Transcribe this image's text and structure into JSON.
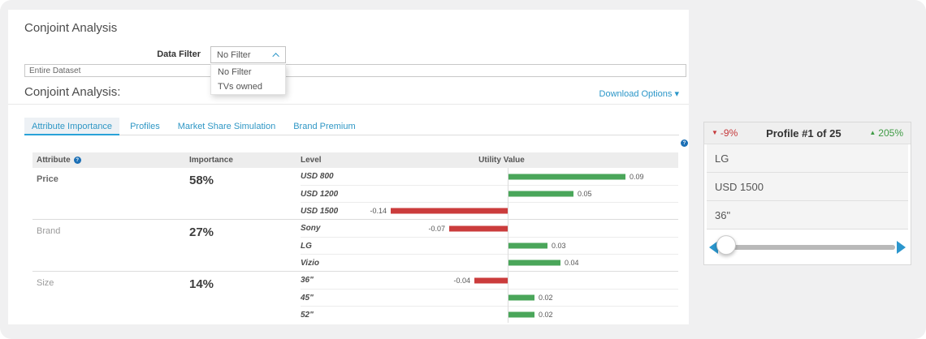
{
  "colors": {
    "accent_blue": "#2b96c8",
    "positive_green": "#4aa65a",
    "negative_red": "#cb3c3c",
    "active_tab_underline": "#29a2d8",
    "help_icon_blue": "#1b6fb5"
  },
  "header": {
    "page_title": "Conjoint Analysis"
  },
  "filter": {
    "label": "Data Filter",
    "selected": "No Filter",
    "options": [
      "No Filter",
      "TVs owned"
    ]
  },
  "dataset": {
    "value": "Entire Dataset"
  },
  "section": {
    "title": "Conjoint Analysis:",
    "download_label": "Download Options",
    "download_caret": "▾"
  },
  "tabs": [
    {
      "label": "Attribute Importance",
      "active": true
    },
    {
      "label": "Profiles",
      "active": false
    },
    {
      "label": "Market Share Simulation",
      "active": false
    },
    {
      "label": "Brand Premium",
      "active": false
    }
  ],
  "table": {
    "headers": {
      "attribute": "Attribute",
      "importance": "Importance",
      "level": "Level",
      "utility": "Utility Value"
    },
    "help_icon": "?",
    "rows": [
      {
        "attribute": "Price",
        "emphasis": true,
        "importance": "58%",
        "levels": [
          {
            "name": "USD 800",
            "value": 0.09,
            "label": "0.09"
          },
          {
            "name": "USD 1200",
            "value": 0.05,
            "label": "0.05"
          },
          {
            "name": "USD 1500",
            "value": -0.14,
            "label": "-0.14"
          }
        ]
      },
      {
        "attribute": "Brand",
        "emphasis": false,
        "importance": "27%",
        "levels": [
          {
            "name": "Sony",
            "value": -0.07,
            "label": "-0.07"
          },
          {
            "name": "LG",
            "value": 0.03,
            "label": "0.03"
          },
          {
            "name": "Vizio",
            "value": 0.04,
            "label": "0.04"
          }
        ]
      },
      {
        "attribute": "Size",
        "emphasis": false,
        "importance": "14%",
        "levels": [
          {
            "name": "36\"",
            "value": -0.04,
            "label": "-0.04"
          },
          {
            "name": "45\"",
            "value": 0.02,
            "label": "0.02"
          },
          {
            "name": "52\"",
            "value": 0.02,
            "label": "0.02"
          }
        ]
      }
    ]
  },
  "chart_data": {
    "type": "bar",
    "orientation": "horizontal",
    "title": "Utility Value",
    "categories": [
      "USD 800",
      "USD 1200",
      "USD 1500",
      "Sony",
      "LG",
      "Vizio",
      "36\"",
      "45\"",
      "52\""
    ],
    "values": [
      0.09,
      0.05,
      -0.14,
      -0.07,
      0.03,
      0.04,
      -0.04,
      0.02,
      0.02
    ],
    "groups": [
      {
        "attribute": "Price",
        "importance": "58%",
        "levels": [
          "USD 800",
          "USD 1200",
          "USD 1500"
        ],
        "values": [
          0.09,
          0.05,
          -0.14
        ]
      },
      {
        "attribute": "Brand",
        "importance": "27%",
        "levels": [
          "Sony",
          "LG",
          "Vizio"
        ],
        "values": [
          -0.07,
          0.03,
          0.04
        ]
      },
      {
        "attribute": "Size",
        "importance": "14%",
        "levels": [
          "36\"",
          "45\"",
          "52\""
        ],
        "values": [
          -0.04,
          0.02,
          0.02
        ]
      }
    ],
    "positive_color": "#4aa65a",
    "negative_color": "#cb3c3c",
    "zero_axis": true,
    "grid": false
  },
  "profile_card": {
    "decrease": "-9%",
    "decrease_triangle": "▼",
    "title": "Profile #1 of 25",
    "increase": "205%",
    "increase_triangle": "▲",
    "items": [
      "LG",
      "USD 1500",
      "36\""
    ],
    "slider_position_pct": 5
  }
}
